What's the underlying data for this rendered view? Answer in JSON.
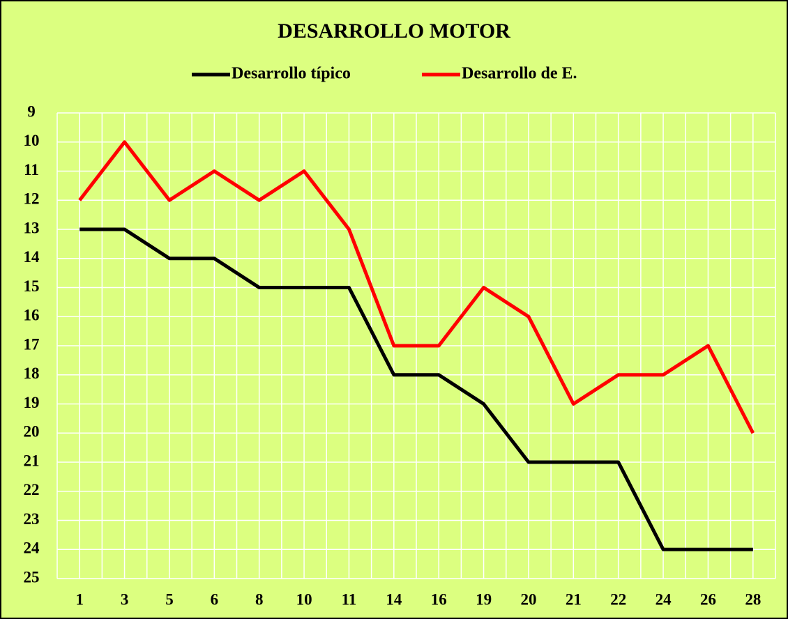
{
  "chart_data": {
    "type": "line",
    "title": "DESARROLLO MOTOR",
    "categories": [
      "1",
      "3",
      "5",
      "6",
      "8",
      "10",
      "11",
      "14",
      "16",
      "19",
      "20",
      "21",
      "22",
      "24",
      "26",
      "28"
    ],
    "series": [
      {
        "name": "Desarrollo típico",
        "color": "#000000",
        "values": [
          13,
          13,
          14,
          14,
          15,
          15,
          15,
          18,
          18,
          19,
          21,
          21,
          21,
          24,
          24,
          24
        ]
      },
      {
        "name": "Desarrollo de E.",
        "color": "#ff0000",
        "values": [
          12,
          10,
          12,
          11,
          12,
          11,
          13,
          17,
          17,
          15,
          16,
          19,
          18,
          18,
          17,
          20
        ]
      }
    ],
    "ylim": [
      9,
      25
    ],
    "y_inverted": true,
    "yticks": [
      9,
      10,
      11,
      12,
      13,
      14,
      15,
      16,
      17,
      18,
      19,
      20,
      21,
      22,
      23,
      24,
      25
    ],
    "grid": true,
    "legend": "top"
  }
}
